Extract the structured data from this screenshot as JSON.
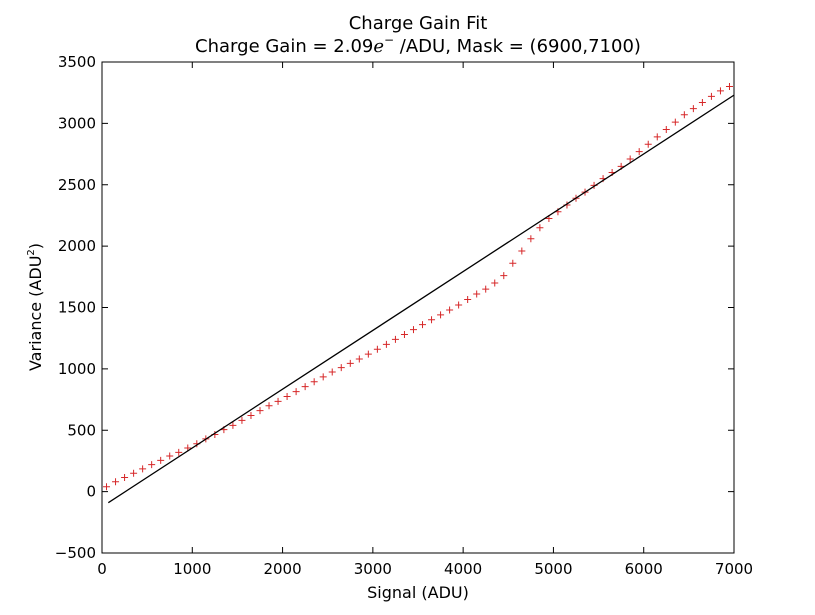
{
  "chart_data": {
    "type": "scatter",
    "title": "Charge Gain Fit",
    "subtitle": {
      "prefix": "Charge Gain = 2.09",
      "unit_base": "e",
      "unit_sup": "−",
      "suffix": " /ADU, Mask = (6900,7100)"
    },
    "xlabel": "Signal (ADU)",
    "ylabel": {
      "base": "Variance (ADU",
      "sup": "2",
      "close": ")"
    },
    "xlim": [
      0,
      7000
    ],
    "ylim": [
      -500,
      3500
    ],
    "xticks": [
      0,
      1000,
      2000,
      3000,
      4000,
      5000,
      6000,
      7000
    ],
    "yticks": [
      -500,
      0,
      500,
      1000,
      1500,
      2000,
      2500,
      3000,
      3500
    ],
    "xtick_labels": [
      "0",
      "1000",
      "2000",
      "3000",
      "4000",
      "5000",
      "6000",
      "7000"
    ],
    "ytick_labels": [
      "−500",
      "0",
      "500",
      "1000",
      "1500",
      "2000",
      "2500",
      "3000",
      "3500"
    ],
    "grid": false,
    "series": [
      {
        "kind": "points",
        "marker": "+",
        "color": "#d62728",
        "x": [
          50,
          150,
          250,
          350,
          450,
          550,
          650,
          750,
          850,
          950,
          1050,
          1150,
          1250,
          1350,
          1450,
          1550,
          1650,
          1750,
          1850,
          1950,
          2050,
          2150,
          2250,
          2350,
          2450,
          2550,
          2650,
          2750,
          2850,
          2950,
          3050,
          3150,
          3250,
          3350,
          3450,
          3550,
          3650,
          3750,
          3850,
          3950,
          4050,
          4150,
          4250,
          4350,
          4450,
          4550,
          4650,
          4750,
          4850,
          4950,
          5050,
          5150,
          5250,
          5350,
          5450,
          5550,
          5650,
          5750,
          5850,
          5950,
          6050,
          6150,
          6250,
          6350,
          6450,
          6550,
          6650,
          6750,
          6850,
          6950
        ],
        "y": [
          40,
          80,
          115,
          150,
          185,
          220,
          255,
          290,
          320,
          355,
          390,
          430,
          465,
          505,
          540,
          580,
          620,
          660,
          700,
          735,
          775,
          815,
          855,
          895,
          935,
          975,
          1010,
          1045,
          1080,
          1120,
          1160,
          1200,
          1240,
          1280,
          1320,
          1360,
          1400,
          1440,
          1480,
          1520,
          1565,
          1610,
          1650,
          1700,
          1760,
          1860,
          1960,
          2060,
          2150,
          2225,
          2280,
          2335,
          2390,
          2440,
          2495,
          2550,
          2600,
          2650,
          2710,
          2770,
          2830,
          2890,
          2950,
          3010,
          3070,
          3120,
          3170,
          3220,
          3265,
          3300
        ]
      },
      {
        "kind": "fit-line",
        "color": "#000000",
        "x": [
          70,
          7000
        ],
        "y": [
          -90,
          3230
        ]
      }
    ]
  }
}
